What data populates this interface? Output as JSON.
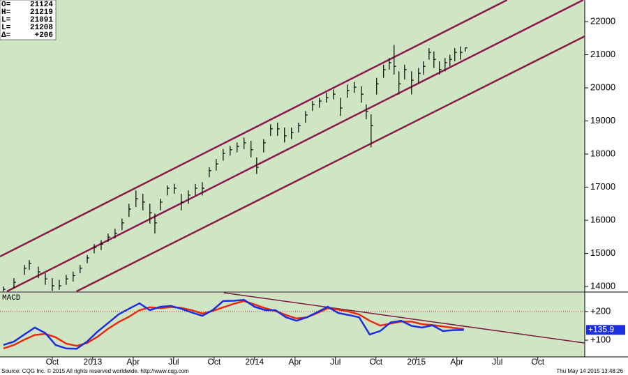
{
  "chart_data": [
    {
      "type": "ohlc",
      "xlim": [
        2012.427,
        2016.04
      ],
      "ylim": [
        13853,
        22653
      ],
      "yticks": [
        14000,
        15000,
        16000,
        17000,
        18000,
        19000,
        20000,
        21000,
        22000
      ],
      "color": "#000000",
      "x": [
        2012.448,
        2012.513,
        2012.578,
        2012.608,
        2012.664,
        2012.707,
        2012.75,
        2012.793,
        2012.836,
        2012.879,
        2012.922,
        2012.966,
        2013.009,
        2013.052,
        2013.095,
        2013.138,
        2013.181,
        2013.224,
        2013.267,
        2013.31,
        2013.353,
        2013.384,
        2013.418,
        2013.461,
        2013.504,
        2013.547,
        2013.591,
        2013.634,
        2013.677,
        2013.72,
        2013.763,
        2013.806,
        2013.849,
        2013.892,
        2013.935,
        2013.978,
        2014.013,
        2014.056,
        2014.099,
        2014.142,
        2014.185,
        2014.228,
        2014.272,
        2014.315,
        2014.358,
        2014.401,
        2014.444,
        2014.487,
        2014.53,
        2014.573,
        2014.616,
        2014.66,
        2014.69,
        2014.72,
        2014.754,
        2014.797,
        2014.832,
        2014.862,
        2014.892,
        2014.927,
        2014.97,
        2015.013,
        2015.043,
        2015.078,
        2015.108,
        2015.142,
        2015.177,
        2015.207,
        2015.237,
        2015.272,
        2015.302
      ],
      "high": [
        14000,
        14250,
        14650,
        14800,
        14600,
        14400,
        14250,
        14200,
        14350,
        14450,
        14650,
        14950,
        15280,
        15400,
        15600,
        15750,
        16050,
        16500,
        16900,
        16800,
        16500,
        16200,
        16650,
        17050,
        17100,
        16800,
        16900,
        17100,
        17150,
        17600,
        17850,
        18150,
        18250,
        18350,
        18500,
        18400,
        17900,
        18450,
        18900,
        18950,
        18800,
        18800,
        18950,
        19300,
        19600,
        19700,
        19850,
        19950,
        19700,
        20100,
        20180,
        20050,
        19500,
        19200,
        20300,
        20700,
        20900,
        21300,
        20500,
        20700,
        20500,
        20600,
        20800,
        21200,
        21100,
        20800,
        20900,
        21000,
        21200,
        21250,
        21219
      ],
      "low": [
        13850,
        13950,
        14350,
        14500,
        14250,
        14050,
        13870,
        13900,
        14050,
        14150,
        14400,
        14700,
        15000,
        15100,
        15350,
        15450,
        15700,
        16100,
        16400,
        16300,
        15900,
        15600,
        16300,
        16750,
        16800,
        16300,
        16500,
        16750,
        16750,
        17300,
        17500,
        17800,
        17950,
        18050,
        18150,
        17900,
        17400,
        18050,
        18550,
        18550,
        18350,
        18450,
        18650,
        18950,
        19300,
        19400,
        19550,
        19650,
        19150,
        19700,
        19850,
        19550,
        19050,
        18200,
        19800,
        20300,
        20550,
        20400,
        19800,
        20250,
        19800,
        20150,
        20400,
        20850,
        20600,
        20400,
        20500,
        20650,
        20800,
        20850,
        21091
      ],
      "close": [
        13915,
        14126,
        14550,
        14700,
        14440,
        14230,
        14020,
        14020,
        14230,
        14330,
        14550,
        14860,
        15180,
        15280,
        15490,
        15600,
        15920,
        16340,
        16650,
        16550,
        16230,
        15920,
        16550,
        16970,
        16970,
        16550,
        16760,
        16970,
        16970,
        17500,
        17700,
        18020,
        18130,
        18230,
        18340,
        18130,
        17600,
        18340,
        18760,
        18760,
        18550,
        18650,
        18860,
        19180,
        19500,
        19600,
        19700,
        19810,
        19390,
        19920,
        20020,
        19810,
        19280,
        18860,
        20120,
        20550,
        20760,
        20650,
        20120,
        20550,
        20230,
        20440,
        20650,
        21070,
        20860,
        20550,
        20760,
        20860,
        21070,
        21070,
        21208
      ],
      "channels": [
        {
          "color": "#8b1a4a",
          "x": [
            2012.427,
            2015.56
          ],
          "y": [
            14905,
            22653
          ]
        },
        {
          "color": "#8b1a4a",
          "x": [
            2012.47,
            2016.03
          ],
          "y": [
            13853,
            22653
          ]
        },
        {
          "color": "#8b1a4a",
          "x": [
            2012.9,
            2016.04
          ],
          "y": [
            13853,
            21558
          ]
        }
      ],
      "ohlc_box": {
        "labels": [
          "O=",
          "H=",
          "L=",
          "L=",
          "Δ="
        ],
        "values": [
          21124,
          21219,
          21091,
          21208,
          206
        ],
        "value_labels": [
          "21124",
          "21219",
          "21091",
          "21208",
          "+206"
        ]
      }
    },
    {
      "type": "line",
      "title": "MACD",
      "xlim": [
        2012.427,
        2016.04
      ],
      "ylim": [
        41.5,
        266
      ],
      "yticks": [
        {
          "value": 100,
          "label": "+100"
        },
        {
          "value": 200,
          "label": "+200"
        }
      ],
      "xticks": [
        {
          "value": 2012.75,
          "label": "Oct"
        },
        {
          "value": 2013.0,
          "label": "2013"
        },
        {
          "value": 2013.25,
          "label": "Apr"
        },
        {
          "value": 2013.5,
          "label": "Jul"
        },
        {
          "value": 2013.75,
          "label": "Oct"
        },
        {
          "value": 2014.0,
          "label": "2014"
        },
        {
          "value": 2014.25,
          "label": "Apr"
        },
        {
          "value": 2014.5,
          "label": "Jul"
        },
        {
          "value": 2014.75,
          "label": "Oct"
        },
        {
          "value": 2015.0,
          "label": "2015"
        },
        {
          "value": 2015.25,
          "label": "Apr"
        },
        {
          "value": 2015.5,
          "label": "Jul"
        },
        {
          "value": 2015.75,
          "label": "Oct"
        }
      ],
      "hline": {
        "value": 200,
        "color": "#e02020"
      },
      "x": [
        2012.448,
        2012.513,
        2012.578,
        2012.642,
        2012.707,
        2012.771,
        2012.836,
        2012.901,
        2012.965,
        2013.03,
        2013.095,
        2013.159,
        2013.224,
        2013.289,
        2013.353,
        2013.418,
        2013.483,
        2013.547,
        2013.612,
        2013.677,
        2013.741,
        2013.806,
        2013.871,
        2013.935,
        2014.0,
        2014.065,
        2014.129,
        2014.194,
        2014.259,
        2014.323,
        2014.388,
        2014.452,
        2014.517,
        2014.582,
        2014.646,
        2014.711,
        2014.776,
        2014.84,
        2014.905,
        2014.97,
        2015.034,
        2015.099,
        2015.164,
        2015.228,
        2015.293
      ],
      "series": [
        {
          "color": "#1c2ee0",
          "values": [
            83,
            95,
            120,
            144,
            125,
            83,
            71,
            70,
            95,
            130,
            160,
            190,
            210,
            229,
            205,
            217,
            220,
            210,
            197,
            185,
            205,
            237,
            238,
            241,
            217,
            205,
            205,
            180,
            168,
            180,
            198,
            217,
            195,
            188,
            180,
            120,
            132,
            162,
            168,
            150,
            144,
            152,
            132,
            135,
            135.9
          ],
          "last_label": "+135.9"
        },
        {
          "color": "#e82a10",
          "values": [
            71,
            83,
            102,
            118,
            122,
            110,
            88,
            80,
            90,
            112,
            140,
            163,
            182,
            205,
            215,
            212,
            216,
            213,
            205,
            193,
            202,
            215,
            227,
            237,
            225,
            212,
            202,
            188,
            176,
            180,
            195,
            212,
            207,
            200,
            190,
            168,
            151,
            158,
            165,
            165,
            156,
            153,
            148,
            143,
            139
          ]
        }
      ],
      "trendline": {
        "color": "#7a1a40",
        "x": [
          2013.81,
          2016.04
        ],
        "y": [
          266,
          90
        ]
      }
    }
  ],
  "footer": {
    "source": "Source: CQG Inc. © 2015 All rights reserved worldwide. http://www.cqg.com",
    "timestamp": "Thu May 14 2015 13:48:26"
  }
}
